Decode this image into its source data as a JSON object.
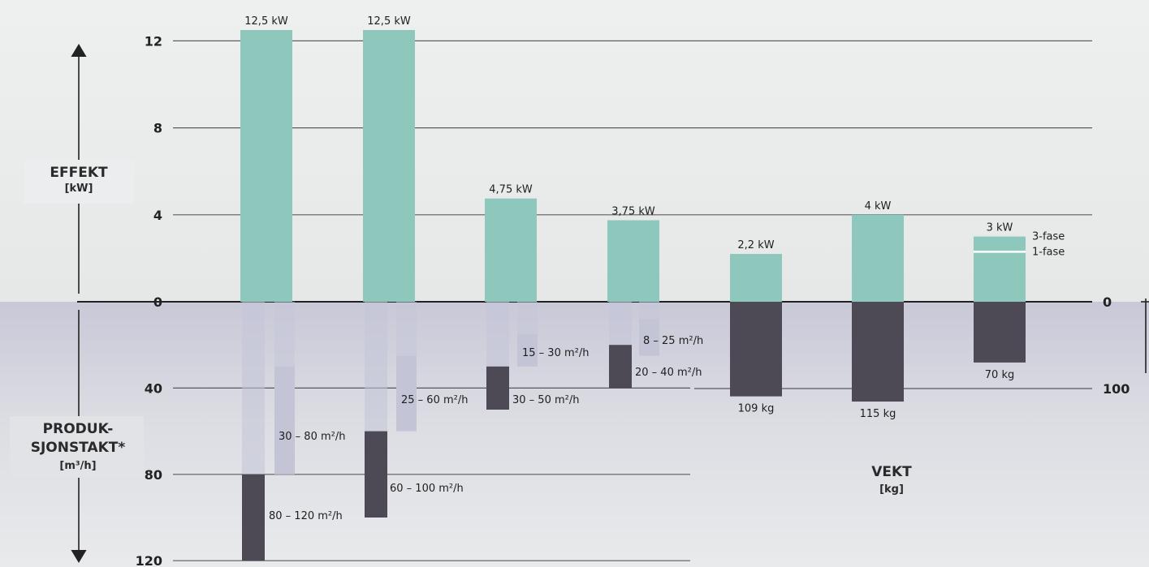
{
  "colors": {
    "power": "#8ec8bc",
    "production_low": "#c3c5d7",
    "production_high": "#4d4a55",
    "weight": "#4d4a55",
    "gridline": "#3a3a3a"
  },
  "chart_data": {
    "type": "bar",
    "axes": {
      "power": {
        "title": "EFFEKT",
        "unit": "[kW]",
        "ticks": [
          "12",
          "8",
          "4",
          "0"
        ],
        "ylim": [
          0,
          12.5
        ]
      },
      "production": {
        "title": [
          "PRODUK-",
          "SJONSTAKT*"
        ],
        "unit": "[m³/h]",
        "ticks": [
          "40",
          "80",
          "120"
        ],
        "ylim": [
          0,
          120
        ]
      },
      "weight": {
        "title": "VEKT",
        "unit": "[kg]",
        "ticks": [
          "0",
          "100"
        ]
      }
    },
    "power_bars": [
      {
        "value": 12.5,
        "label": "12,5 kW"
      },
      {
        "value": 12.5,
        "label": "12,5 kW"
      },
      {
        "value": 4.75,
        "label": "4,75 kW"
      },
      {
        "value": 3.75,
        "label": "3,75 kW"
      },
      {
        "value": 2.2,
        "label": "2,2 kW"
      },
      {
        "value": 4,
        "label": "4 kW"
      },
      {
        "value": 3,
        "label": "3 kW",
        "alt_value": 2.3,
        "alt_labels": [
          "3-fase",
          "1-fase"
        ]
      }
    ],
    "production_ranges": [
      {
        "machine": 1,
        "low": [
          0,
          80
        ],
        "high": [
          80,
          120
        ],
        "high_label": "80 – 120 m²/h",
        "low_label": "30 – 80 m²/h",
        "low_start": 30
      },
      {
        "machine": 2,
        "low": [
          0,
          60
        ],
        "high": [
          60,
          100
        ],
        "high_label": "60 – 100 m²/h",
        "low_label": "25 – 60 m²/h",
        "low_start": 25
      },
      {
        "machine": 3,
        "low": [
          0,
          30
        ],
        "high": [
          30,
          50
        ],
        "high_label": "30 – 50 m²/h",
        "low_label": "15 – 30 m²/h",
        "low_start": 15
      },
      {
        "machine": 4,
        "low": [
          0,
          25
        ],
        "high": [
          20,
          40
        ],
        "high_label": "20 – 40 m²/h",
        "low_label": "8 – 25 m²/h",
        "low_start": 8
      }
    ],
    "weights": [
      {
        "machine": 5,
        "value": 109,
        "label": "109 kg"
      },
      {
        "machine": 6,
        "value": 115,
        "label": "115 kg"
      },
      {
        "machine": 7,
        "value": 70,
        "label": "70 kg"
      }
    ]
  }
}
